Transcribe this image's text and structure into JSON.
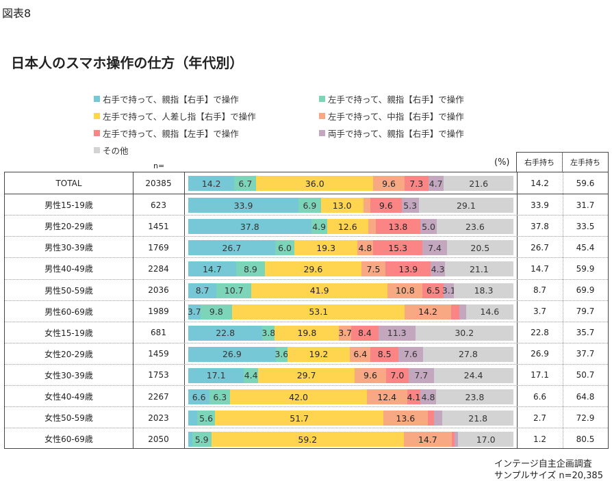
{
  "figure_label": "図表8",
  "chart_data": {
    "type": "bar",
    "stacked": true,
    "orientation": "horizontal",
    "title": "日本人のスマホ操作の仕方（年代別）",
    "unit": "(%)",
    "n_header": "n=",
    "extra_headers": [
      "右手持ち",
      "左手持ち"
    ],
    "colors": [
      "#77C8D6",
      "#7DD5B9",
      "#FFD54F",
      "#F8A882",
      "#FB8585",
      "#C3A7BF",
      "#D3D3D3"
    ],
    "series_names": [
      "右手で持って、親指【右手】で操作",
      "左手で持って、親指【右手】で操作",
      "左手で持って、人差し指【右手】で操作",
      "左手で持って、中指【右手】で操作",
      "左手で持って、親指【左手】で操作",
      "両手で持って、親指【右手】で操作",
      "その他"
    ],
    "legend_order": [
      0,
      1,
      2,
      3,
      4,
      5,
      6
    ],
    "rows": [
      {
        "label": "TOTAL",
        "n": "20385",
        "values": [
          14.2,
          6.7,
          36.0,
          9.6,
          7.3,
          4.7,
          21.6
        ],
        "labels": [
          "14.2",
          "6.7",
          "36.0",
          "9.6",
          "7.3",
          "4.7",
          "21.6"
        ],
        "right": "14.2",
        "left": "59.6"
      },
      {
        "label": "男性15-19歳",
        "n": "623",
        "values": [
          33.9,
          6.9,
          13.0,
          2.2,
          9.6,
          5.3,
          29.1
        ],
        "labels": [
          "33.9",
          "6.9",
          "13.0",
          "",
          "9.6",
          "5.3",
          "29.1"
        ],
        "right": "33.9",
        "left": "31.7"
      },
      {
        "label": "男性20-29歳",
        "n": "1451",
        "values": [
          37.8,
          4.9,
          12.6,
          2.3,
          13.8,
          5.0,
          23.6
        ],
        "labels": [
          "37.8",
          "4.9",
          "12.6",
          "",
          "13.8",
          "5.0",
          "23.6"
        ],
        "right": "37.8",
        "left": "33.5"
      },
      {
        "label": "男性30-39歳",
        "n": "1769",
        "values": [
          26.7,
          6.0,
          19.3,
          4.8,
          15.3,
          7.4,
          20.5
        ],
        "labels": [
          "26.7",
          "6.0",
          "19.3",
          "4.8",
          "15.3",
          "7.4",
          "20.5"
        ],
        "right": "26.7",
        "left": "45.4"
      },
      {
        "label": "男性40-49歳",
        "n": "2284",
        "values": [
          14.7,
          8.9,
          29.6,
          7.5,
          13.9,
          4.3,
          21.1
        ],
        "labels": [
          "14.7",
          "8.9",
          "29.6",
          "7.5",
          "13.9",
          "4.3",
          "21.1"
        ],
        "right": "14.7",
        "left": "59.9"
      },
      {
        "label": "男性50-59歳",
        "n": "2036",
        "values": [
          8.7,
          10.7,
          41.9,
          10.8,
          6.5,
          3.1,
          18.3
        ],
        "labels": [
          "8.7",
          "10.7",
          "41.9",
          "10.8",
          "6.5",
          "3.1",
          "18.3"
        ],
        "right": "8.7",
        "left": "69.9"
      },
      {
        "label": "男性60-69歳",
        "n": "1989",
        "values": [
          3.7,
          9.8,
          53.1,
          14.2,
          2.6,
          2.0,
          14.6
        ],
        "labels": [
          "3.7",
          "9.8",
          "53.1",
          "14.2",
          "",
          "",
          "14.6"
        ],
        "right": "3.7",
        "left": "79.7"
      },
      {
        "label": "女性15-19歳",
        "n": "681",
        "values": [
          22.8,
          3.8,
          19.8,
          3.7,
          8.4,
          11.3,
          30.2
        ],
        "labels": [
          "22.8",
          "3.8",
          "19.8",
          "3.7",
          "8.4",
          "11.3",
          "30.2"
        ],
        "right": "22.8",
        "left": "35.7"
      },
      {
        "label": "女性20-29歳",
        "n": "1459",
        "values": [
          26.9,
          3.6,
          19.2,
          6.4,
          8.5,
          7.6,
          27.8
        ],
        "labels": [
          "26.9",
          "3.6",
          "19.2",
          "6.4",
          "8.5",
          "7.6",
          "27.8"
        ],
        "right": "26.9",
        "left": "37.7"
      },
      {
        "label": "女性30-39歳",
        "n": "1753",
        "values": [
          17.1,
          4.4,
          29.7,
          9.6,
          7.0,
          7.7,
          24.4
        ],
        "labels": [
          "17.1",
          "4.4",
          "29.7",
          "9.6",
          "7.0",
          "7.7",
          "24.4"
        ],
        "right": "17.1",
        "left": "50.7"
      },
      {
        "label": "女性40-49歳",
        "n": "2267",
        "values": [
          6.6,
          6.3,
          42.0,
          12.4,
          4.1,
          4.8,
          23.8
        ],
        "labels": [
          "6.6",
          "6.3",
          "42.0",
          "12.4",
          "4.1",
          "4.8",
          "23.8"
        ],
        "right": "6.6",
        "left": "64.8"
      },
      {
        "label": "女性50-59歳",
        "n": "2023",
        "values": [
          2.7,
          5.6,
          51.7,
          13.6,
          2.0,
          2.6,
          21.8
        ],
        "labels": [
          "",
          "5.6",
          "51.7",
          "13.6",
          "",
          "",
          "21.8"
        ],
        "right": "2.7",
        "left": "72.9"
      },
      {
        "label": "女性60-69歳",
        "n": "2050",
        "values": [
          1.2,
          5.9,
          59.2,
          14.7,
          0.8,
          1.2,
          17.0
        ],
        "labels": [
          "",
          "5.9",
          "59.2",
          "14.7",
          "",
          "",
          "17.0"
        ],
        "right": "1.2",
        "left": "80.5"
      }
    ]
  },
  "footer": {
    "line1": "インテージ自主企画調査",
    "line2": "サンプルサイズ n=20,385"
  }
}
